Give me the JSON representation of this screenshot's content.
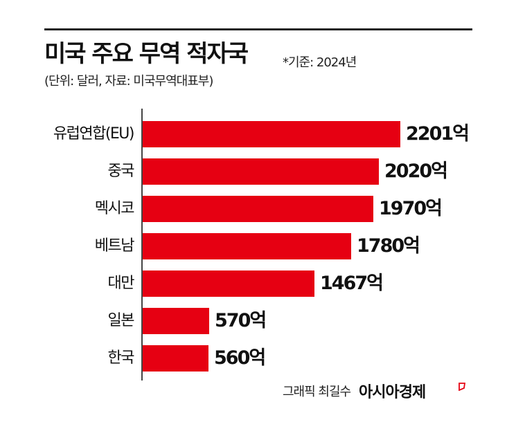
{
  "header": {
    "title": "미국 주요 무역 적자국",
    "basis_note": "*기준: 2024년",
    "subtitle": "(단위: 달러, 자료: 미국무역대표부)"
  },
  "bars": [
    {
      "label": "유럽연합(EU)",
      "value_label": "2201억",
      "value": 2201
    },
    {
      "label": "중국",
      "value_label": "2020억",
      "value": 2020
    },
    {
      "label": "멕시코",
      "value_label": "1970억",
      "value": 1970
    },
    {
      "label": "베트남",
      "value_label": "1780억",
      "value": 1780
    },
    {
      "label": "대만",
      "value_label": "1467억",
      "value": 1467
    },
    {
      "label": "일본",
      "value_label": "570억",
      "value": 570
    },
    {
      "label": "한국",
      "value_label": "560억",
      "value": 560
    }
  ],
  "footer": {
    "credit": "그래픽 최길수",
    "brand": "아시아경제",
    "brand_mark_icon": "red-flag-mark-icon"
  },
  "colors": {
    "bar": "#e60012",
    "text": "#111111",
    "axis": "#444444",
    "brand_accent": "#e60012"
  },
  "chart_data": {
    "type": "bar",
    "orientation": "horizontal",
    "title": "미국 주요 무역 적자국",
    "subtitle": "(단위: 달러, 자료: 미국무역대표부)",
    "annotation": "*기준: 2024년",
    "categories": [
      "유럽연합(EU)",
      "중국",
      "멕시코",
      "베트남",
      "대만",
      "일본",
      "한국"
    ],
    "values": [
      2201,
      2020,
      1970,
      1780,
      1467,
      570,
      560
    ],
    "value_labels": [
      "2201억",
      "2020억",
      "1970억",
      "1780억",
      "1467억",
      "570억",
      "560억"
    ],
    "unit": "억 달러",
    "xlabel": "",
    "ylabel": "",
    "grid": false,
    "legend": null,
    "source": "미국무역대표부"
  }
}
